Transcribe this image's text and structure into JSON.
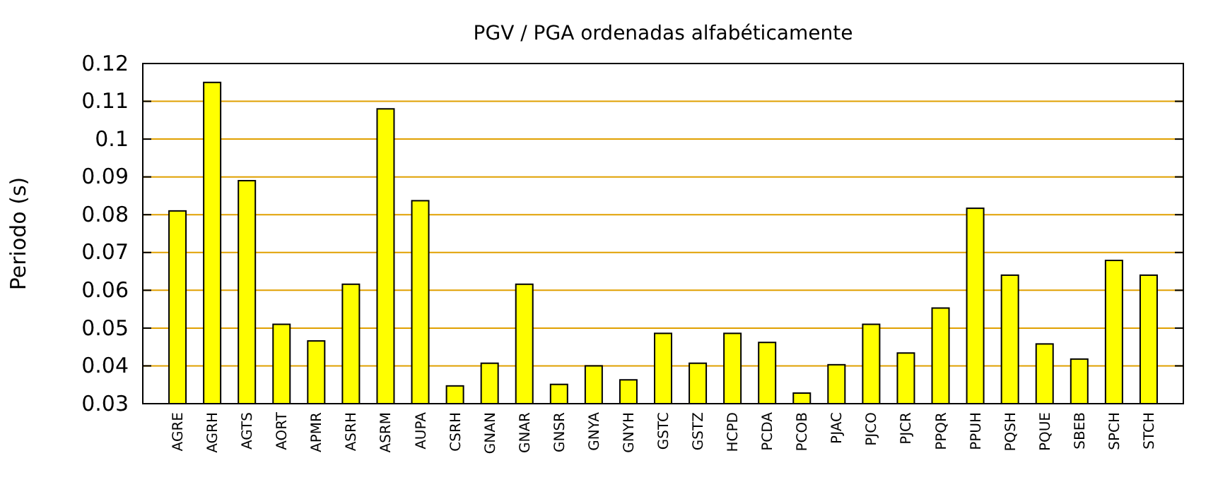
{
  "chart_data": {
    "type": "bar",
    "title": "PGV / PGA ordenadas alfabéticamente",
    "ylabel": "Periodo (s)",
    "categories": [
      "AGRE",
      "AGRH",
      "AGTS",
      "AORT",
      "APMR",
      "ASRH",
      "ASRM",
      "AUPA",
      "CSRH",
      "GNAN",
      "GNAR",
      "GNSR",
      "GNYA",
      "GNYH",
      "GSTC",
      "GSTZ",
      "HCPD",
      "PCDA",
      "PCOB",
      "PJAC",
      "PJCO",
      "PJCR",
      "PPQR",
      "PPUH",
      "PQSH",
      "PQUE",
      "SBEB",
      "SPCH",
      "STCH"
    ],
    "values": [
      0.081,
      0.115,
      0.089,
      0.051,
      0.0466,
      0.0616,
      0.108,
      0.0837,
      0.0347,
      0.0407,
      0.0616,
      0.0351,
      0.04,
      0.0363,
      0.0486,
      0.0407,
      0.0486,
      0.0462,
      0.0328,
      0.0403,
      0.051,
      0.0434,
      0.0553,
      0.0817,
      0.064,
      0.0458,
      0.0418,
      0.0679,
      0.064
    ],
    "color": "#ffff00",
    "ylim": [
      0.03,
      0.12
    ],
    "yticks": [
      0.03,
      0.04,
      0.05,
      0.06,
      0.07,
      0.08,
      0.09,
      0.1,
      0.11,
      0.12
    ],
    "grid": "y"
  }
}
